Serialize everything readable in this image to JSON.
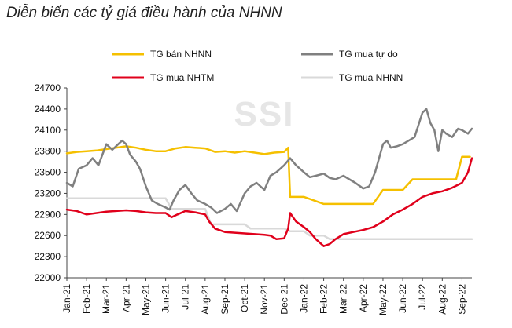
{
  "title": "Diễn biến các tỷ giá điều hành của NHNN",
  "watermark": "SSI",
  "chart_data": {
    "type": "line",
    "ylim": [
      22000,
      24700
    ],
    "yticks": [
      22000,
      22300,
      22600,
      22900,
      23200,
      23500,
      23800,
      24100,
      24400,
      24700
    ],
    "x_months": [
      "Jan-21",
      "Feb-21",
      "Mar-21",
      "Apr-21",
      "May-21",
      "Jun-21",
      "Jul-21",
      "Aug-21",
      "Sep-21",
      "Oct-21",
      "Nov-21",
      "Dec-21",
      "Jan-22",
      "Feb-22",
      "Mar-22",
      "Apr-22",
      "May-22",
      "Jun-22",
      "Jul-22",
      "Aug-22",
      "Sep-22"
    ],
    "grid": false,
    "legend_position": "top",
    "series": [
      {
        "name": "TG bán NHNN",
        "color": "#f5c000",
        "x": [
          0,
          0.5,
          1,
          1.5,
          2,
          2.5,
          3,
          3.5,
          4,
          4.5,
          5,
          5.5,
          6,
          6.5,
          7,
          7.5,
          8,
          8.5,
          9,
          9.5,
          10,
          10.5,
          11,
          11.2,
          11.3,
          12,
          13,
          14,
          15,
          15.5,
          16,
          17,
          17.5,
          18,
          19,
          19.7,
          20,
          20.4
        ],
        "values": [
          23770,
          23790,
          23800,
          23810,
          23830,
          23850,
          23870,
          23850,
          23820,
          23800,
          23800,
          23840,
          23860,
          23850,
          23840,
          23790,
          23800,
          23780,
          23800,
          23780,
          23760,
          23780,
          23790,
          23850,
          23150,
          23150,
          23050,
          23050,
          23050,
          23050,
          23250,
          23250,
          23400,
          23400,
          23400,
          23400,
          23720,
          23720
        ]
      },
      {
        "name": "TG mua tự do",
        "color": "#808080",
        "x": [
          0,
          0.3,
          0.6,
          1,
          1.3,
          1.6,
          2,
          2.3,
          2.6,
          2.8,
          3,
          3.2,
          3.5,
          3.7,
          4,
          4.3,
          4.6,
          5,
          5.2,
          5.4,
          5.7,
          6,
          6.3,
          6.6,
          7,
          7.3,
          7.6,
          8,
          8.3,
          8.6,
          9,
          9.3,
          9.6,
          10,
          10.3,
          10.6,
          11,
          11.3,
          11.6,
          12,
          12.3,
          12.6,
          13,
          13.3,
          13.6,
          14,
          14.3,
          14.6,
          15,
          15.3,
          15.6,
          16,
          16.2,
          16.4,
          16.7,
          17,
          17.3,
          17.6,
          18,
          18.2,
          18.4,
          18.6,
          18.8,
          19,
          19.2,
          19.5,
          19.8,
          20,
          20.3,
          20.5
        ],
        "values": [
          23350,
          23300,
          23550,
          23600,
          23700,
          23600,
          23900,
          23820,
          23900,
          23950,
          23900,
          23750,
          23650,
          23550,
          23300,
          23100,
          23050,
          23000,
          22970,
          23100,
          23250,
          23320,
          23200,
          23100,
          23050,
          23000,
          22920,
          22980,
          23050,
          22950,
          23200,
          23300,
          23350,
          23250,
          23450,
          23500,
          23600,
          23700,
          23600,
          23500,
          23430,
          23450,
          23480,
          23420,
          23400,
          23450,
          23400,
          23350,
          23270,
          23300,
          23500,
          23900,
          23950,
          23850,
          23870,
          23900,
          23950,
          24000,
          24350,
          24400,
          24200,
          24100,
          23800,
          24100,
          24050,
          24000,
          24120,
          24100,
          24050,
          24120
        ]
      },
      {
        "name": "TG mua NHTM",
        "color": "#e0001b",
        "x": [
          0,
          0.5,
          1,
          1.5,
          2,
          2.5,
          3,
          3.5,
          4,
          4.5,
          5,
          5.3,
          5.6,
          6,
          6.5,
          7,
          7.2,
          7.5,
          8,
          8.5,
          9,
          9.5,
          10,
          10.3,
          10.6,
          11,
          11.2,
          11.3,
          11.6,
          12,
          12.3,
          12.6,
          13,
          13.3,
          13.6,
          14,
          14.5,
          15,
          15.5,
          16,
          16.5,
          17,
          17.5,
          18,
          18.5,
          19,
          19.5,
          20,
          20.3,
          20.5
        ],
        "values": [
          22970,
          22950,
          22900,
          22920,
          22940,
          22950,
          22960,
          22950,
          22930,
          22920,
          22920,
          22860,
          22900,
          22950,
          22930,
          22900,
          22800,
          22700,
          22650,
          22640,
          22630,
          22620,
          22610,
          22600,
          22550,
          22560,
          22700,
          22920,
          22800,
          22720,
          22650,
          22550,
          22450,
          22480,
          22550,
          22620,
          22650,
          22680,
          22720,
          22800,
          22900,
          22970,
          23050,
          23150,
          23200,
          23230,
          23280,
          23350,
          23500,
          23700
        ]
      },
      {
        "name": "TG mua NHNN",
        "color": "#d9d9d9",
        "x": [
          0,
          5,
          5.3,
          7,
          7.3,
          9,
          9.3,
          11,
          11.3,
          12,
          12.3,
          13,
          13.3,
          20.5
        ],
        "values": [
          23130,
          23130,
          22980,
          22980,
          22760,
          22760,
          22700,
          22700,
          22660,
          22660,
          22600,
          22600,
          22550,
          22550
        ]
      }
    ]
  }
}
